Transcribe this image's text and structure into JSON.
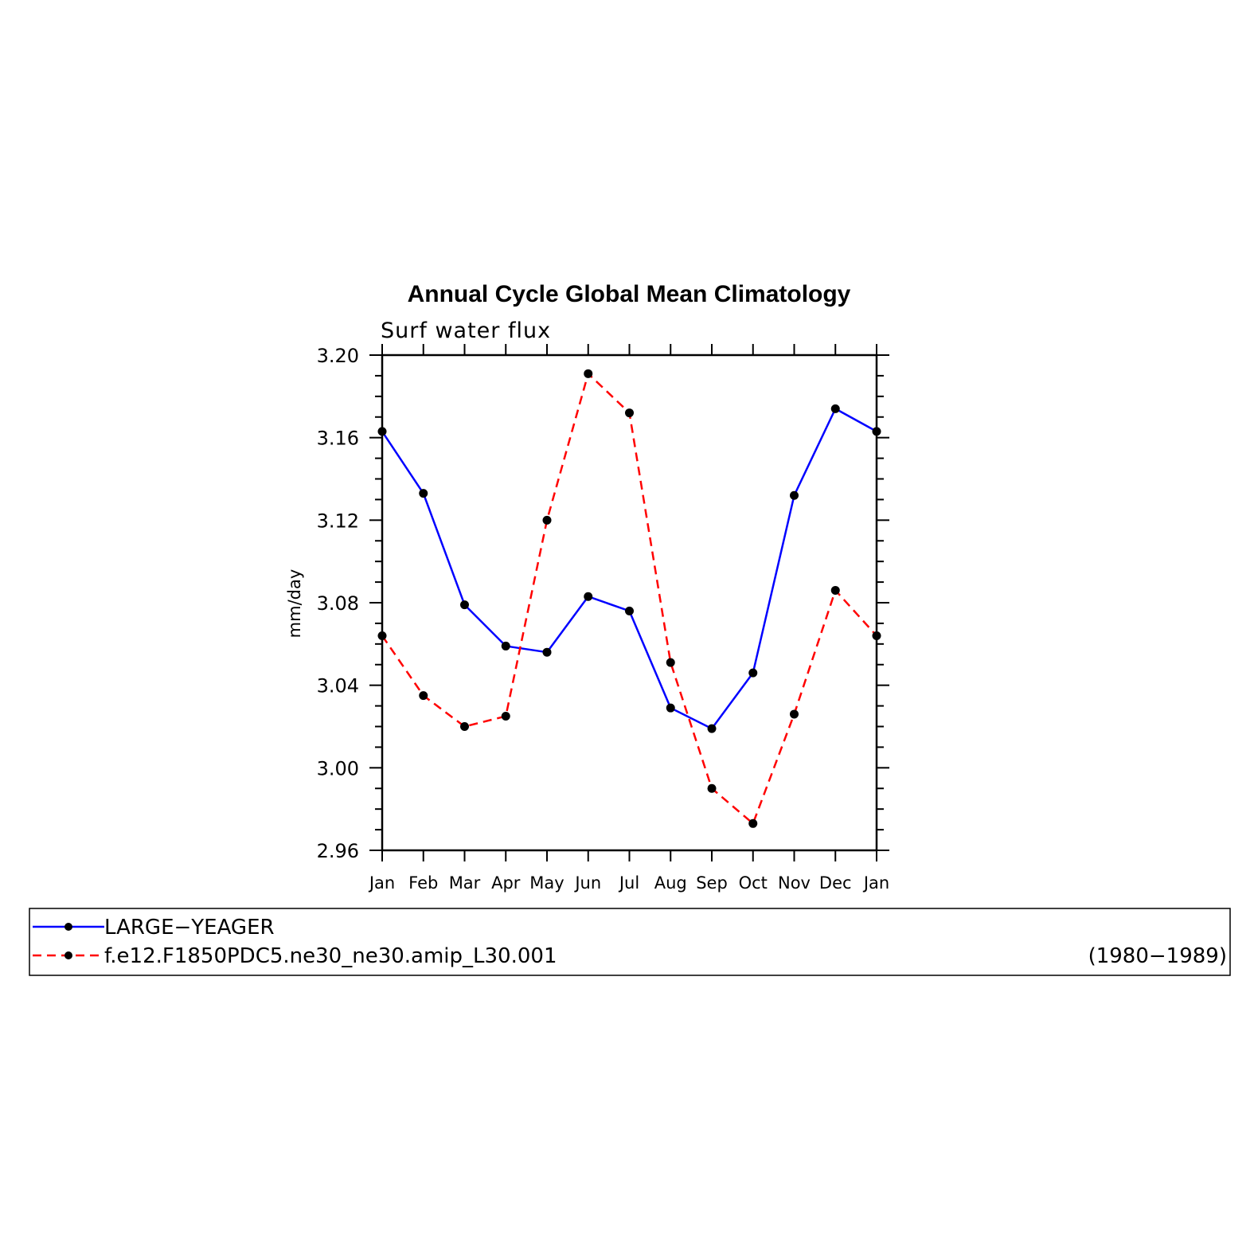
{
  "chart_data": {
    "type": "line",
    "title": "Annual Cycle Global Mean Climatology",
    "subtitle": "Surf water flux",
    "ylabel": "mm/day",
    "xlabel": "",
    "categories": [
      "Jan",
      "Feb",
      "Mar",
      "Apr",
      "May",
      "Jun",
      "Jul",
      "Aug",
      "Sep",
      "Oct",
      "Nov",
      "Dec",
      "Jan"
    ],
    "ylim": [
      2.96,
      3.2
    ],
    "yticks": [
      "3.20",
      "3.16",
      "3.12",
      "3.08",
      "3.04",
      "3.00",
      "2.96"
    ],
    "series": [
      {
        "name": "LARGE−YEAGER",
        "color": "#0000ff",
        "style": "solid",
        "values": [
          3.163,
          3.133,
          3.079,
          3.059,
          3.056,
          3.083,
          3.076,
          3.029,
          3.019,
          3.046,
          3.132,
          3.174,
          3.163
        ]
      },
      {
        "name": "f.e12.F1850PDC5.ne30_ne30.amip_L30.001",
        "color": "#ff0000",
        "style": "dashed",
        "values": [
          3.064,
          3.035,
          3.02,
          3.025,
          3.12,
          3.191,
          3.172,
          3.051,
          2.99,
          2.973,
          3.026,
          3.086,
          3.064
        ]
      }
    ],
    "legend": {
      "placement": "bottom",
      "note": "(1980−1989)"
    },
    "grid": false
  }
}
